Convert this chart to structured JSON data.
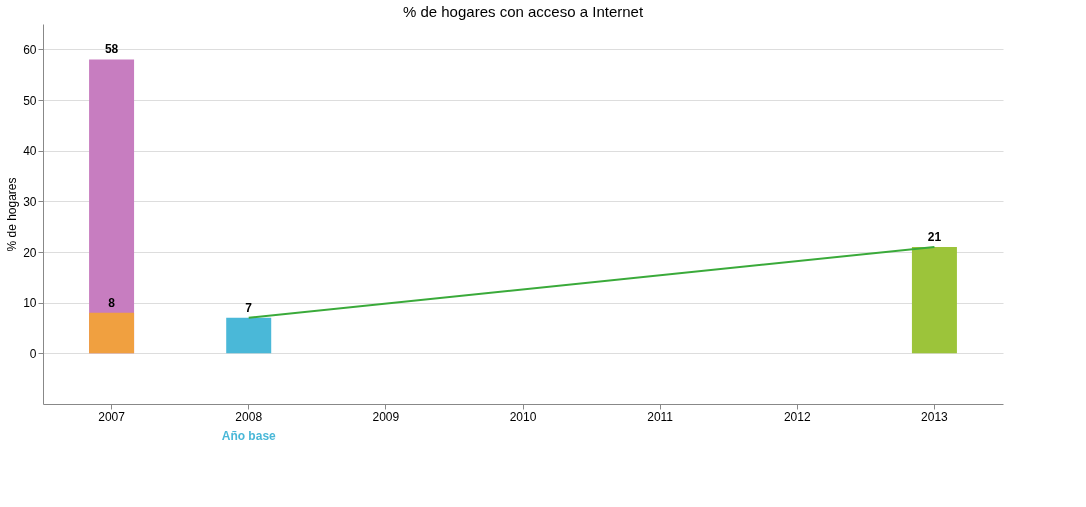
{
  "chart_data": {
    "type": "bar",
    "title": "% de hogares con acceso a Internet",
    "ylabel": "% de hogares",
    "categories": [
      "2007",
      "2008",
      "2009",
      "2010",
      "2011",
      "2012",
      "2013"
    ],
    "series": [
      {
        "color": "#c77dc0",
        "values": [
          58,
          null,
          null,
          null,
          null,
          null,
          null
        ],
        "value_labels": [
          "58",
          null,
          null,
          null,
          null,
          null,
          null
        ]
      },
      {
        "colors": [
          "#f0a040",
          "#4ab8d8",
          null,
          null,
          null,
          null,
          "#9cc43a"
        ],
        "values": [
          8,
          7,
          null,
          null,
          null,
          null,
          21
        ],
        "value_labels": [
          "8",
          "7",
          null,
          null,
          null,
          null,
          "21"
        ]
      },
      {
        "type": "line",
        "color": "#3aaa3a",
        "values": [
          null,
          7,
          null,
          null,
          null,
          null,
          21
        ]
      }
    ],
    "ylim": [
      -10,
      65
    ],
    "yticks": [
      0,
      10,
      20,
      30,
      40,
      50,
      60
    ],
    "grid": "y",
    "annotations": [
      "Año base"
    ]
  }
}
